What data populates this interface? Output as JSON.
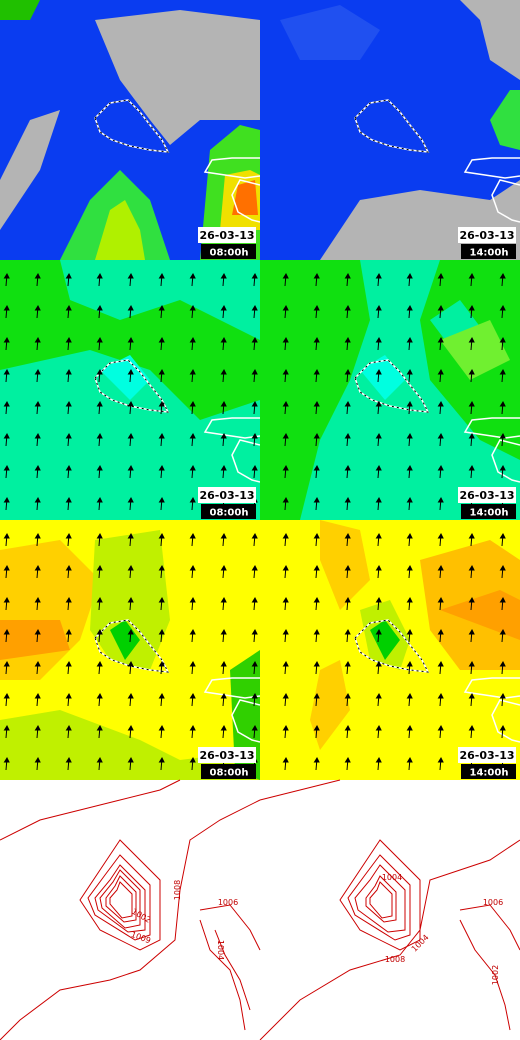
{
  "rows": [
    {
      "panels": [
        {
          "date": "26-03-13",
          "time": "08:00h"
        },
        {
          "date": "26-03-13",
          "time": "14:00h"
        }
      ]
    },
    {
      "panels": [
        {
          "date": "26-03-13",
          "time": "08:00h"
        },
        {
          "date": "26-03-13",
          "time": "14:00h"
        }
      ]
    },
    {
      "panels": [
        {
          "date": "26-03-13",
          "time": "08:00h"
        },
        {
          "date": "26-03-13",
          "time": "14:00h"
        }
      ]
    }
  ],
  "contours": {
    "panels": [
      {
        "labels": [
          "1008",
          "1002",
          "1006",
          "1004",
          "1009"
        ]
      },
      {
        "labels": [
          "1004",
          "1008",
          "1006",
          "1004",
          "1002"
        ]
      }
    ]
  }
}
